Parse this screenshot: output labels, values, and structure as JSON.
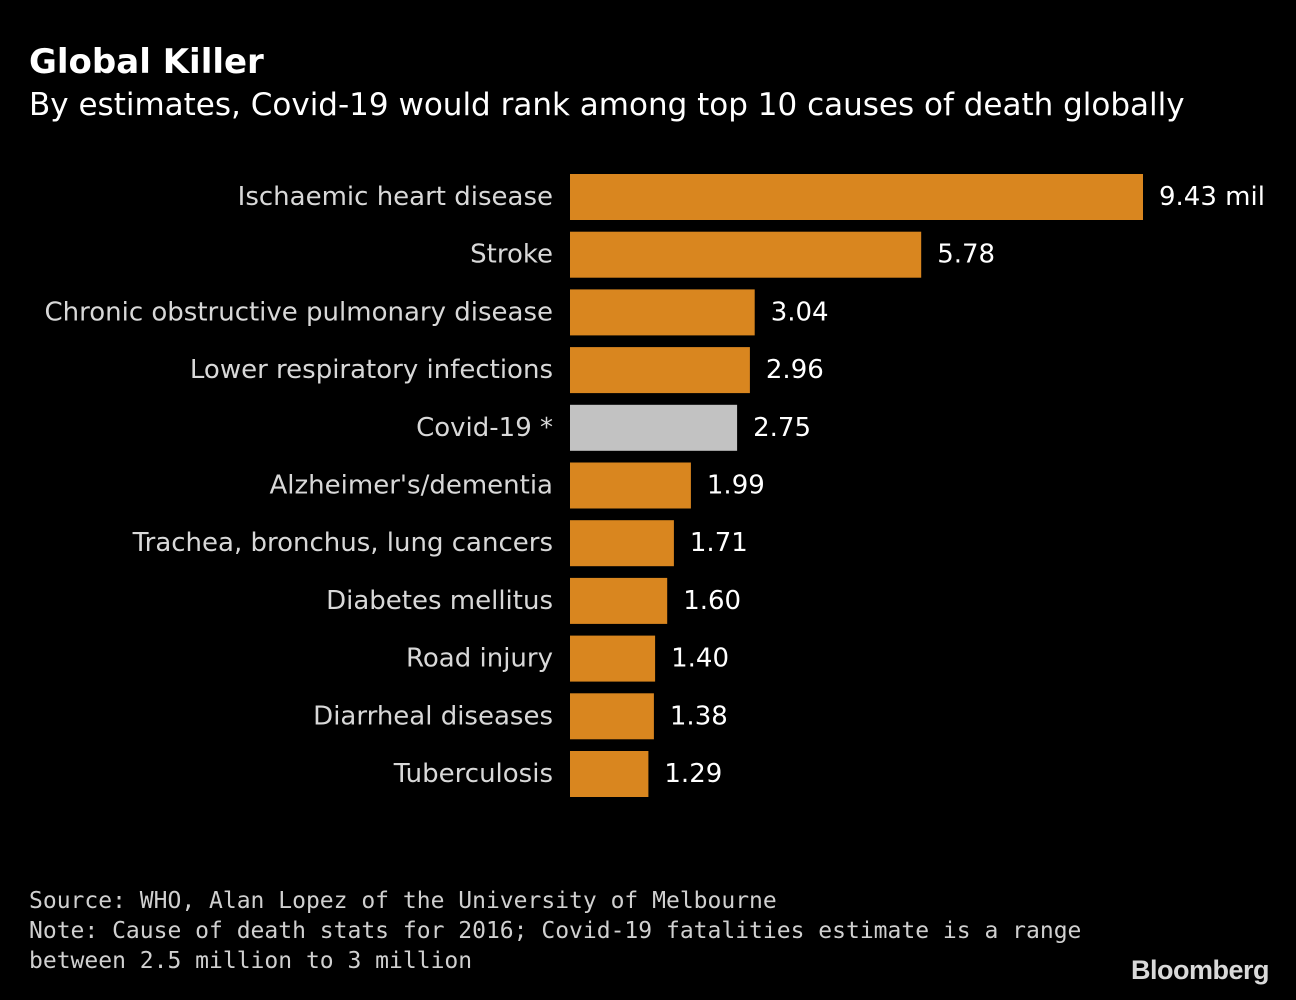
{
  "chart_data": {
    "type": "bar",
    "orientation": "horizontal",
    "title": "Global Killer",
    "subtitle": "By estimates, Covid-19 would rank among top 10 causes of death globally",
    "categories": [
      "Ischaemic heart disease",
      "Stroke",
      "Chronic obstructive pulmonary disease",
      "Lower respiratory infections",
      "Covid-19 *",
      "Alzheimer's/dementia",
      "Trachea, bronchus, lung cancers",
      "Diabetes mellitus",
      "Road injury",
      "Diarrheal diseases",
      "Tuberculosis"
    ],
    "values": [
      9.43,
      5.78,
      3.04,
      2.96,
      2.75,
      1.99,
      1.71,
      1.6,
      1.4,
      1.38,
      1.29
    ],
    "value_labels": [
      "9.43 mil",
      "5.78",
      "3.04",
      "2.96",
      "2.75",
      "1.99",
      "1.71",
      "1.60",
      "1.40",
      "1.38",
      "1.29"
    ],
    "highlight_index": 4,
    "xlim": [
      0,
      9.43
    ],
    "unit": "million deaths",
    "colors": {
      "bar": "#d9861f",
      "highlight": "#c2c2c2",
      "label": "#d8d8d8",
      "value": "#ffffff"
    }
  },
  "footer": {
    "source": "Source: WHO, Alan Lopez of the University of Melbourne",
    "note_line1": "Note: Cause of death stats for 2016; Covid-19 fatalities estimate is a range",
    "note_line2": "between 2.5 million to 3 million"
  },
  "brand": {
    "logo": "Bloomberg"
  }
}
